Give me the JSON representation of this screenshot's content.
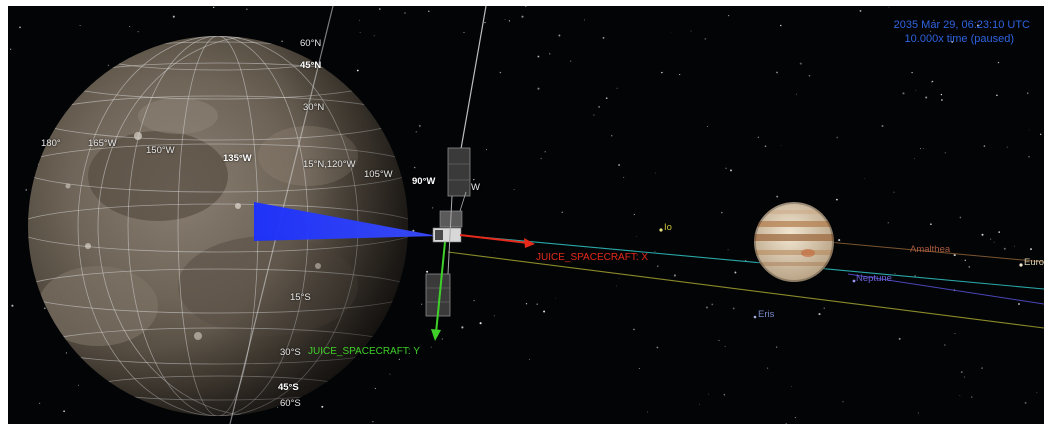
{
  "hud": {
    "time": "2035 Mar 29, 06:23:10 UTC",
    "time_rate": "10.000x time (paused)"
  },
  "colors": {
    "background": "#030406",
    "hud_text": "#2f63e0",
    "axis_x": "#e52a1c",
    "axis_y": "#3fd12a",
    "sensor_cone": "#1a2fff",
    "io_label": "#c9c23a",
    "amalthea_label": "#a85a3e",
    "neptune_label": "#6a62d8",
    "eris_label": "#7a8ac8",
    "europa_label": "#d8d0b0"
  },
  "grid_labels": {
    "lat_60n": "60°N",
    "lat_45n": "45°N",
    "lat_30n": "30°N",
    "lat_15n_lon_120w": "15°N,120°W",
    "lon_180": "180°",
    "lon_165w": "165°W",
    "lon_150w": "150°W",
    "lon_135w": "135°W",
    "lon_105w": "105°W",
    "lon_90w": "90°W",
    "lon_w": "W",
    "lat_15s": "15°S",
    "lat_30s": "30°S",
    "lat_45s": "45°S",
    "lat_60s": "60°S"
  },
  "bodies": {
    "io": "Io",
    "amalthea": "Amalthea",
    "europa": "Europ",
    "neptune": "Neptune",
    "eris": "Eris"
  },
  "axes": {
    "x_label": "JUICE_SPACECRAFT: X",
    "y_label": "JUICE_SPACECRAFT: Y"
  }
}
